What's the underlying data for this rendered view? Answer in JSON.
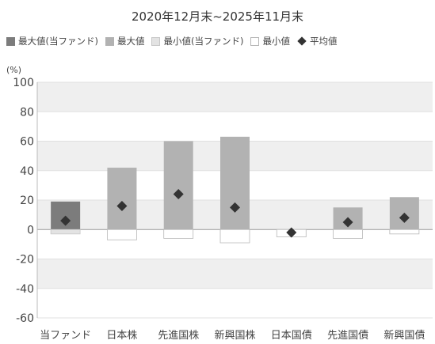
{
  "chart_data": {
    "type": "bar",
    "title": "2020年12月末~2025年11月末",
    "ylabel": "(%)",
    "ylim": [
      -60,
      100
    ],
    "yticks": [
      100,
      80,
      60,
      40,
      20,
      0,
      -20,
      -40,
      -60
    ],
    "categories": [
      "当ファンド",
      "日本株",
      "先進国株",
      "新興国株",
      "日本国債",
      "先進国債",
      "新興国債"
    ],
    "series": [
      {
        "name": "最大値(当ファンド)",
        "values": [
          19,
          null,
          null,
          null,
          null,
          null,
          null
        ]
      },
      {
        "name": "最大値",
        "values": [
          null,
          42,
          60,
          63,
          0,
          15,
          22
        ]
      },
      {
        "name": "最小値(当ファンド)",
        "values": [
          -3,
          null,
          null,
          null,
          null,
          null,
          null
        ]
      },
      {
        "name": "最小値",
        "values": [
          null,
          -7,
          -6,
          -9,
          -5,
          -6,
          -3
        ]
      },
      {
        "name": "平均値",
        "values": [
          6,
          16,
          24,
          15,
          -2,
          5,
          8
        ]
      }
    ],
    "colors": {
      "fund_max": "#7c7c7c",
      "max": "#b2b2b2",
      "fund_min": "#e3e3e3",
      "min": "#ffffff",
      "avg": "#333333",
      "band": "#efefef"
    },
    "legend_position": "top"
  }
}
